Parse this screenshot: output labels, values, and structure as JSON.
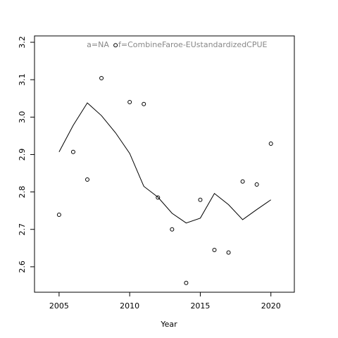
{
  "chart_data": {
    "type": "line",
    "xlabel": "Year",
    "annotations": [
      "a=NA",
      "f=CombineFaroe-EUstandardizedCPUE"
    ],
    "annotation_color": "#888888",
    "x": [
      2005,
      2006,
      2007,
      2008,
      2009,
      2010,
      2011,
      2012,
      2013,
      2014,
      2015,
      2016,
      2017,
      2018,
      2019,
      2020
    ],
    "series": [
      {
        "mode": "markers",
        "color": "#000000",
        "values": [
          2.739,
          2.907,
          2.833,
          3.104,
          3.192,
          3.04,
          3.035,
          2.785,
          2.7,
          2.557,
          2.779,
          2.645,
          2.638,
          2.828,
          2.82,
          2.929
        ]
      },
      {
        "mode": "line",
        "color": "#000000",
        "values": [
          2.907,
          2.978,
          3.038,
          3.004,
          2.958,
          2.903,
          2.815,
          2.786,
          2.743,
          2.717,
          2.73,
          2.796,
          2.766,
          2.726,
          2.753,
          2.779
        ]
      }
    ],
    "xlim": [
      2003.26,
      2021.66
    ],
    "xticks": [
      2005,
      2010,
      2015,
      2020
    ],
    "ylim": [
      2.532,
      3.217
    ],
    "yticks": [
      2.6,
      2.7,
      2.8,
      2.9,
      {
        "value": 3,
        "label": "3.0"
      },
      3.1,
      3.2
    ]
  }
}
